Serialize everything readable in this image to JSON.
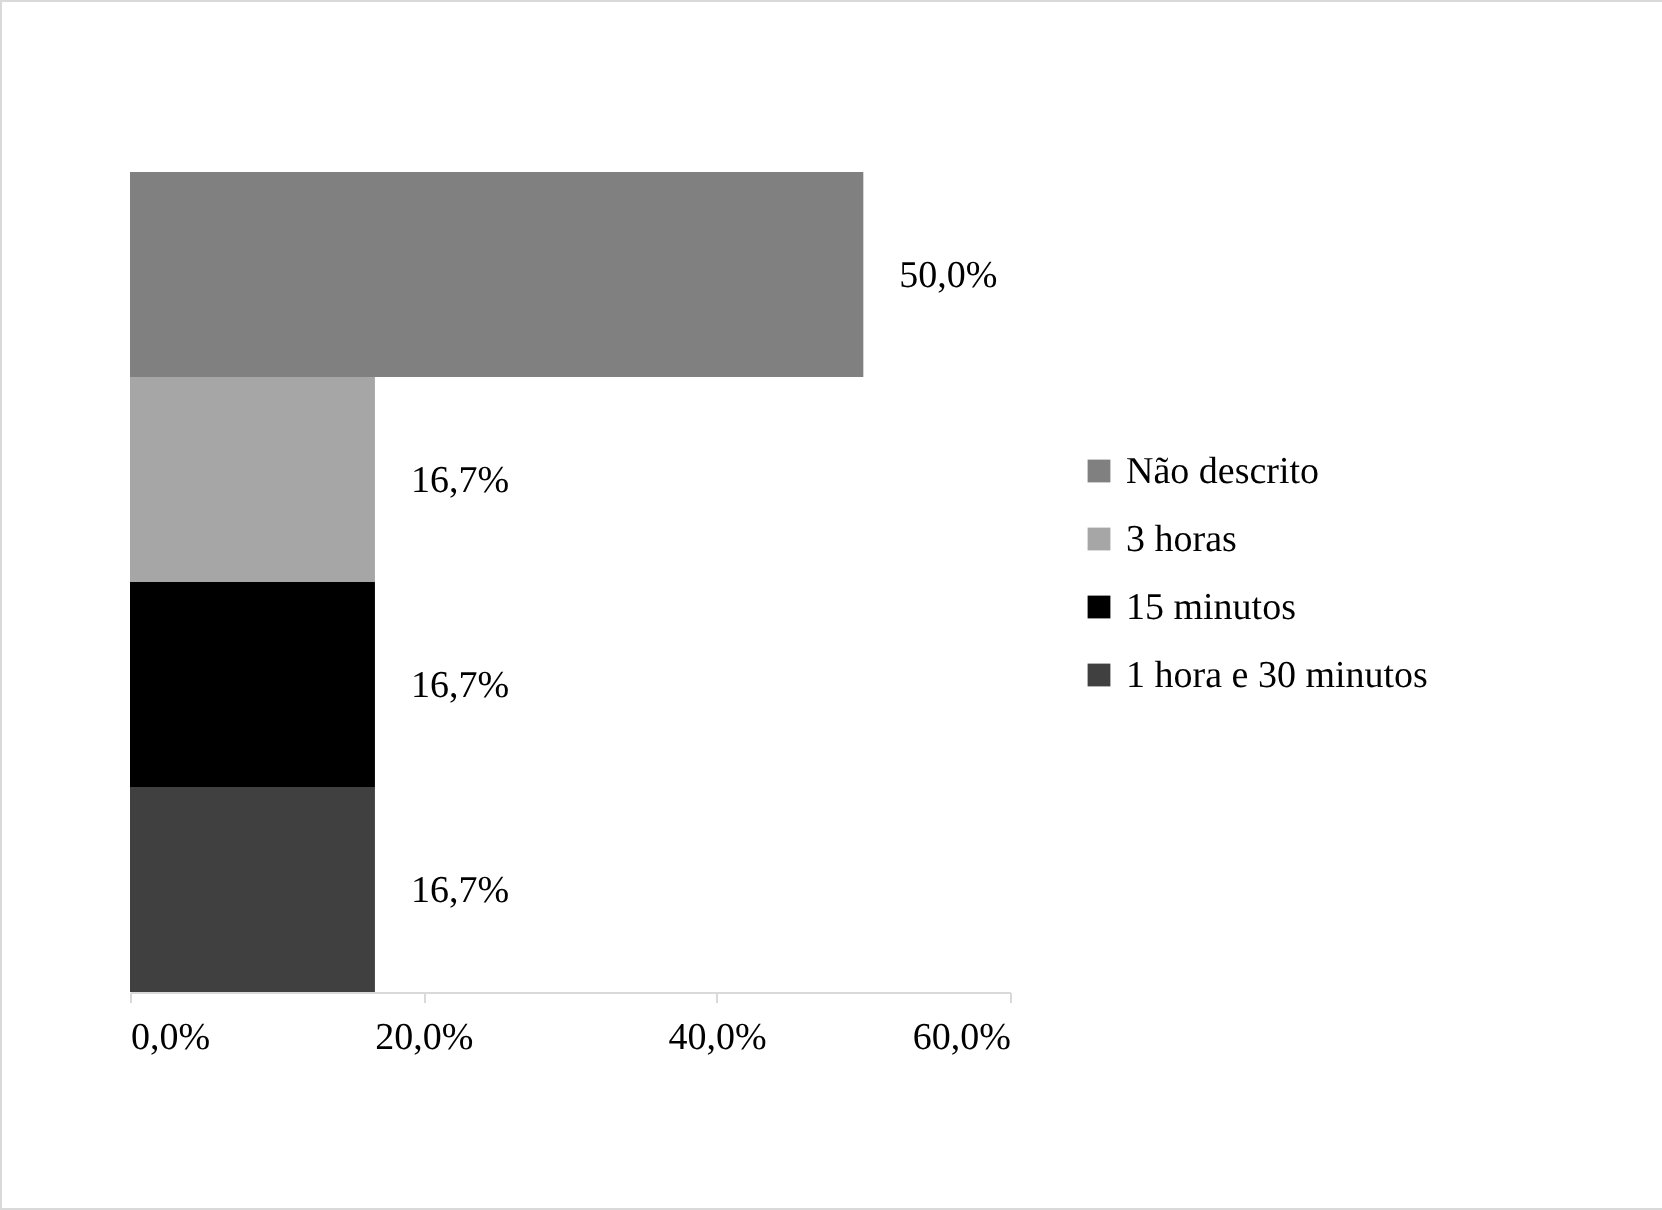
{
  "chart_data": {
    "type": "bar",
    "orientation": "horizontal",
    "categories": [
      null
    ],
    "series": [
      {
        "name": "Não descrito",
        "color": "#808080",
        "values": [
          50.0
        ],
        "value_labels": [
          "50,0%"
        ]
      },
      {
        "name": "3 horas",
        "color": "#a6a6a6",
        "values": [
          16.7
        ],
        "value_labels": [
          "16,7%"
        ]
      },
      {
        "name": "15 minutos",
        "color": "#000000",
        "values": [
          16.7
        ],
        "value_labels": [
          "16,7%"
        ]
      },
      {
        "name": "1 hora e 30 minutos",
        "color": "#404040",
        "values": [
          16.7
        ],
        "value_labels": [
          "16,7%"
        ]
      }
    ],
    "xlim": [
      0,
      60
    ],
    "xticks": [
      {
        "value": 0,
        "label": "0,0%"
      },
      {
        "value": 20,
        "label": "20,0%"
      },
      {
        "value": 40,
        "label": "40,0%"
      },
      {
        "value": 60,
        "label": "60,0%"
      }
    ],
    "grid": false,
    "legend": "right",
    "tick_labels": "x"
  }
}
